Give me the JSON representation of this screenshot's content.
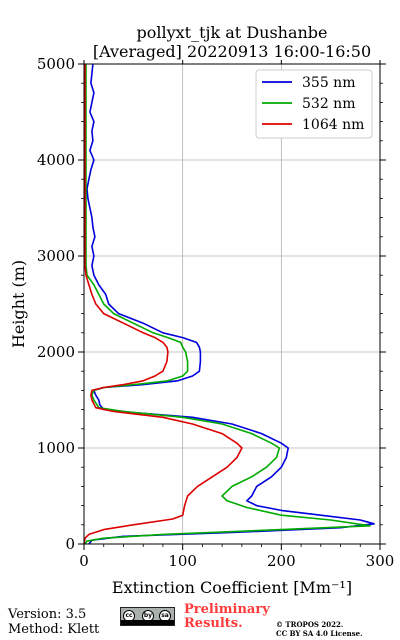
{
  "chart_data": {
    "type": "line",
    "title": [
      "pollyxt_tjk at Dushanbe",
      "[Averaged] 20220913 16:00-16:50"
    ],
    "xlabel": "Extinction Coefficient [Mm⁻¹]",
    "ylabel": "Height (m)",
    "xlim": [
      0,
      300
    ],
    "ylim": [
      0,
      5000
    ],
    "xticks": [
      0,
      100,
      200,
      300
    ],
    "yticks": [
      0,
      1000,
      2000,
      3000,
      4000,
      5000
    ],
    "grid": true,
    "legend_position": "top-right",
    "series": [
      {
        "name": "355 nm",
        "color": "#0000dd",
        "points": [
          [
            5,
            0
          ],
          [
            8,
            40
          ],
          [
            40,
            80
          ],
          [
            150,
            120
          ],
          [
            260,
            170
          ],
          [
            294,
            210
          ],
          [
            280,
            250
          ],
          [
            240,
            300
          ],
          [
            200,
            350
          ],
          [
            175,
            400
          ],
          [
            165,
            450
          ],
          [
            170,
            500
          ],
          [
            175,
            600
          ],
          [
            190,
            700
          ],
          [
            200,
            800
          ],
          [
            205,
            900
          ],
          [
            207,
            1000
          ],
          [
            200,
            1050
          ],
          [
            180,
            1150
          ],
          [
            150,
            1250
          ],
          [
            110,
            1320
          ],
          [
            50,
            1370
          ],
          [
            20,
            1400
          ],
          [
            16,
            1450
          ],
          [
            15,
            1500
          ],
          [
            12,
            1550
          ],
          [
            10,
            1600
          ],
          [
            20,
            1630
          ],
          [
            60,
            1660
          ],
          [
            95,
            1700
          ],
          [
            110,
            1750
          ],
          [
            117,
            1800
          ],
          [
            118,
            1900
          ],
          [
            118,
            2000
          ],
          [
            117,
            2050
          ],
          [
            114,
            2100
          ],
          [
            100,
            2150
          ],
          [
            80,
            2200
          ],
          [
            60,
            2300
          ],
          [
            35,
            2400
          ],
          [
            25,
            2500
          ],
          [
            22,
            2600
          ],
          [
            15,
            2700
          ],
          [
            10,
            2800
          ],
          [
            8,
            2900
          ],
          [
            10,
            3000
          ],
          [
            8,
            3100
          ],
          [
            11,
            3200
          ],
          [
            9,
            3300
          ],
          [
            8,
            3400
          ],
          [
            6,
            3500
          ],
          [
            4,
            3600
          ],
          [
            3,
            3700
          ],
          [
            5,
            3800
          ],
          [
            7,
            3900
          ],
          [
            10,
            4000
          ],
          [
            6,
            4100
          ],
          [
            9,
            4200
          ],
          [
            8,
            4300
          ],
          [
            10,
            4400
          ],
          [
            6,
            4500
          ],
          [
            8,
            4600
          ],
          [
            10,
            4700
          ],
          [
            7,
            4800
          ],
          [
            8,
            4900
          ],
          [
            9,
            5000
          ]
        ]
      },
      {
        "name": "532 nm",
        "color": "#00aa00",
        "points": [
          [
            1,
            0
          ],
          [
            3,
            30
          ],
          [
            20,
            60
          ],
          [
            80,
            100
          ],
          [
            200,
            150
          ],
          [
            290,
            190
          ],
          [
            250,
            250
          ],
          [
            200,
            300
          ],
          [
            165,
            380
          ],
          [
            145,
            450
          ],
          [
            140,
            500
          ],
          [
            150,
            600
          ],
          [
            170,
            700
          ],
          [
            185,
            800
          ],
          [
            195,
            900
          ],
          [
            198,
            1000
          ],
          [
            190,
            1050
          ],
          [
            170,
            1150
          ],
          [
            140,
            1250
          ],
          [
            100,
            1320
          ],
          [
            40,
            1380
          ],
          [
            15,
            1420
          ],
          [
            10,
            1500
          ],
          [
            8,
            1550
          ],
          [
            10,
            1600
          ],
          [
            20,
            1630
          ],
          [
            60,
            1670
          ],
          [
            85,
            1700
          ],
          [
            100,
            1750
          ],
          [
            105,
            1800
          ],
          [
            105,
            1900
          ],
          [
            103,
            2000
          ],
          [
            100,
            2050
          ],
          [
            98,
            2100
          ],
          [
            85,
            2150
          ],
          [
            70,
            2200
          ],
          [
            50,
            2300
          ],
          [
            30,
            2400
          ],
          [
            20,
            2500
          ],
          [
            15,
            2600
          ],
          [
            10,
            2700
          ],
          [
            3,
            2800
          ],
          [
            2,
            2900
          ],
          [
            2,
            3000
          ],
          [
            2,
            3500
          ],
          [
            2,
            4000
          ],
          [
            2,
            4500
          ],
          [
            2,
            5000
          ]
        ]
      },
      {
        "name": "1064 nm",
        "color": "#dd0000",
        "points": [
          [
            0,
            0
          ],
          [
            1,
            60
          ],
          [
            5,
            100
          ],
          [
            20,
            150
          ],
          [
            50,
            200
          ],
          [
            90,
            260
          ],
          [
            100,
            300
          ],
          [
            102,
            400
          ],
          [
            105,
            500
          ],
          [
            115,
            600
          ],
          [
            130,
            700
          ],
          [
            145,
            800
          ],
          [
            155,
            900
          ],
          [
            160,
            1000
          ],
          [
            155,
            1050
          ],
          [
            140,
            1150
          ],
          [
            110,
            1250
          ],
          [
            80,
            1320
          ],
          [
            30,
            1380
          ],
          [
            12,
            1420
          ],
          [
            8,
            1500
          ],
          [
            7,
            1550
          ],
          [
            8,
            1600
          ],
          [
            20,
            1630
          ],
          [
            40,
            1660
          ],
          [
            60,
            1700
          ],
          [
            72,
            1750
          ],
          [
            80,
            1800
          ],
          [
            84,
            1900
          ],
          [
            85,
            2000
          ],
          [
            84,
            2050
          ],
          [
            80,
            2100
          ],
          [
            72,
            2150
          ],
          [
            60,
            2200
          ],
          [
            40,
            2300
          ],
          [
            20,
            2400
          ],
          [
            12,
            2500
          ],
          [
            8,
            2600
          ],
          [
            5,
            2700
          ],
          [
            2,
            2800
          ],
          [
            1,
            2900
          ],
          [
            1,
            3000
          ],
          [
            1,
            3500
          ],
          [
            1,
            4000
          ],
          [
            1,
            4500
          ],
          [
            1,
            5000
          ]
        ]
      }
    ]
  },
  "footer": {
    "version": "Version: 3.5",
    "method": "Method: Klett",
    "license_badge": {
      "labels": [
        "cc",
        "by",
        "sa"
      ],
      "icons": [
        "cc-icon",
        "by-icon",
        "sa-icon"
      ]
    },
    "preliminary": "Preliminary Results.",
    "copyright_line1": "© TROPOS 2022.",
    "copyright_line2": "CC BY SA 4.0 License."
  }
}
